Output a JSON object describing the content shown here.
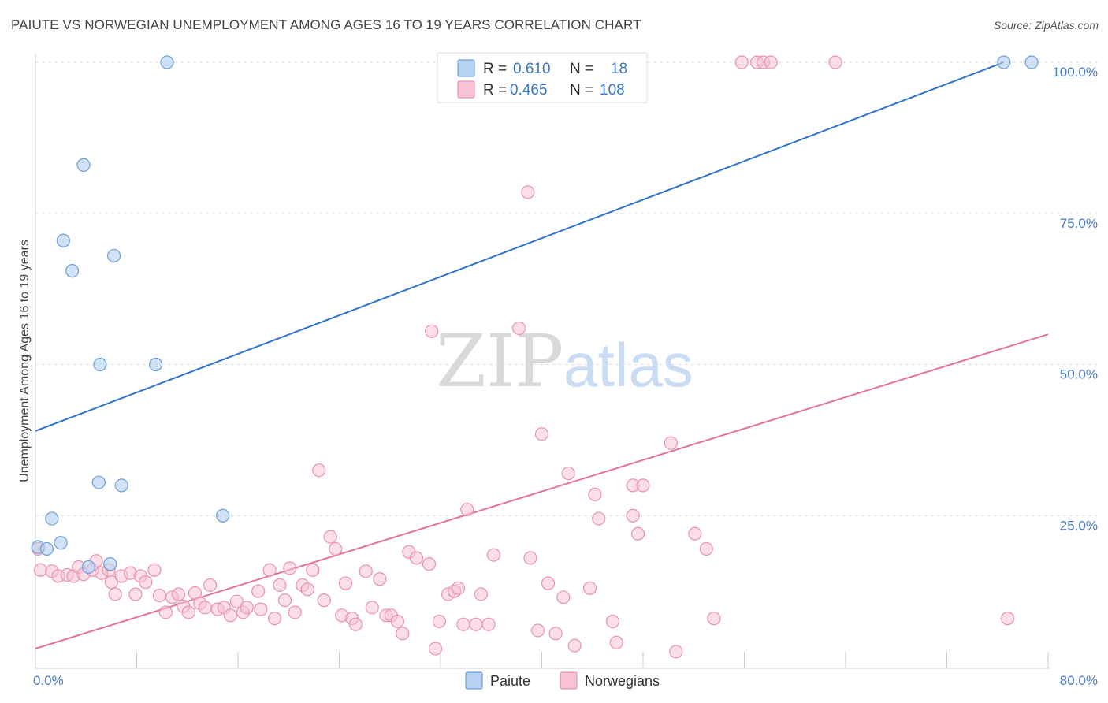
{
  "title": "PAIUTE VS NORWEGIAN UNEMPLOYMENT AMONG AGES 16 TO 19 YEARS CORRELATION CHART",
  "source": "Source: ZipAtlas.com",
  "watermark": {
    "zip": "ZIP",
    "atlas": "atlas"
  },
  "colors": {
    "paiute_fill": "#b8d2f3",
    "paiute_stroke": "#6d9fdc",
    "paiute_line": "#2f72cf",
    "norw_fill": "#f7c2d3",
    "norw_stroke": "#e892ad",
    "norw_line": "#e2739b",
    "grid": "#dddddd",
    "axis_text": "#4a7cc7"
  },
  "legend": {
    "paiute": {
      "r_label": "R =",
      "r_value": "0.610",
      "n_label": "N =",
      "n_value": "18"
    },
    "norwegians": {
      "r_label": "R =",
      "r_value": "0.465",
      "n_label": "N =",
      "n_value": "108"
    }
  },
  "chart_data": {
    "type": "scatter",
    "title": "PAIUTE VS NORWEGIAN UNEMPLOYMENT AMONG AGES 16 TO 19 YEARS CORRELATION CHART",
    "xlabel": "",
    "ylabel": "Unemployment Among Ages 16 to 19 years",
    "xlim": [
      0,
      80
    ],
    "ylim": [
      0,
      102
    ],
    "x_tick_labels": [
      "0.0%",
      "80.0%"
    ],
    "y_tick_labels": [
      {
        "value": 25,
        "label": "25.0%"
      },
      {
        "value": 50,
        "label": "50.0%"
      },
      {
        "value": 75,
        "label": "75.0%"
      },
      {
        "value": 100,
        "label": "100.0%"
      }
    ],
    "grid": true,
    "legend_position": "bottom",
    "series": [
      {
        "name": "Paiute",
        "trend": {
          "x": [
            0,
            76.5
          ],
          "y": [
            39,
            100
          ]
        },
        "points": [
          [
            10.4,
            100
          ],
          [
            76.5,
            100
          ],
          [
            78.7,
            100
          ],
          [
            3.8,
            83
          ],
          [
            2.2,
            70.5
          ],
          [
            2.9,
            65.5
          ],
          [
            6.2,
            68
          ],
          [
            5.1,
            50
          ],
          [
            9.5,
            50
          ],
          [
            5.0,
            30.5
          ],
          [
            6.8,
            30
          ],
          [
            14.8,
            25
          ],
          [
            1.3,
            24.5
          ],
          [
            2.0,
            20.5
          ],
          [
            0.2,
            19.8
          ],
          [
            0.9,
            19.5
          ],
          [
            4.2,
            16.5
          ],
          [
            5.9,
            17
          ]
        ]
      },
      {
        "name": "Norwegians",
        "trend": {
          "x": [
            0,
            80
          ],
          "y": [
            3,
            55
          ]
        },
        "points": [
          [
            0.2,
            19.5
          ],
          [
            0.4,
            16
          ],
          [
            1.3,
            15.8
          ],
          [
            1.8,
            15
          ],
          [
            2.5,
            15.2
          ],
          [
            3.0,
            15
          ],
          [
            3.4,
            16.5
          ],
          [
            3.8,
            15.3
          ],
          [
            4.5,
            16
          ],
          [
            4.8,
            17.5
          ],
          [
            5.2,
            15.5
          ],
          [
            5.8,
            16
          ],
          [
            6.0,
            14
          ],
          [
            6.3,
            12
          ],
          [
            6.8,
            15
          ],
          [
            7.5,
            15.5
          ],
          [
            7.9,
            12
          ],
          [
            8.3,
            15
          ],
          [
            8.7,
            14
          ],
          [
            9.4,
            16
          ],
          [
            9.8,
            11.8
          ],
          [
            10.3,
            9
          ],
          [
            10.8,
            11.5
          ],
          [
            11.3,
            12
          ],
          [
            11.7,
            10
          ],
          [
            12.1,
            9
          ],
          [
            12.6,
            12.2
          ],
          [
            13.0,
            10.5
          ],
          [
            13.4,
            9.8
          ],
          [
            13.8,
            13.5
          ],
          [
            14.4,
            9.5
          ],
          [
            14.9,
            9.8
          ],
          [
            15.4,
            8.5
          ],
          [
            15.9,
            10.8
          ],
          [
            16.4,
            9
          ],
          [
            16.7,
            9.8
          ],
          [
            17.6,
            12.5
          ],
          [
            17.8,
            9.5
          ],
          [
            18.5,
            16
          ],
          [
            18.9,
            8
          ],
          [
            19.3,
            13.5
          ],
          [
            19.7,
            11
          ],
          [
            20.1,
            16.3
          ],
          [
            20.5,
            9
          ],
          [
            21.1,
            13.5
          ],
          [
            21.5,
            12.8
          ],
          [
            21.9,
            16
          ],
          [
            22.4,
            32.5
          ],
          [
            22.8,
            11
          ],
          [
            23.3,
            21.5
          ],
          [
            23.7,
            19.5
          ],
          [
            24.2,
            8.5
          ],
          [
            24.5,
            13.8
          ],
          [
            25.0,
            8
          ],
          [
            25.3,
            7
          ],
          [
            26.1,
            15.8
          ],
          [
            26.6,
            9.8
          ],
          [
            27.2,
            14.5
          ],
          [
            27.7,
            8.5
          ],
          [
            28.1,
            8.5
          ],
          [
            28.6,
            7.5
          ],
          [
            29.0,
            5.5
          ],
          [
            29.5,
            19
          ],
          [
            30.1,
            18
          ],
          [
            31.1,
            17
          ],
          [
            31.3,
            55.5
          ],
          [
            31.6,
            3
          ],
          [
            31.9,
            7.5
          ],
          [
            32.6,
            12
          ],
          [
            33.1,
            12.5
          ],
          [
            33.4,
            13
          ],
          [
            34.1,
            26
          ],
          [
            33.8,
            7
          ],
          [
            34.8,
            7
          ],
          [
            35.2,
            12
          ],
          [
            35.8,
            7
          ],
          [
            36.2,
            18.5
          ],
          [
            38.2,
            56
          ],
          [
            38.9,
            78.5
          ],
          [
            39.1,
            18
          ],
          [
            39.7,
            6
          ],
          [
            40.0,
            38.5
          ],
          [
            40.5,
            13.8
          ],
          [
            41.1,
            5.5
          ],
          [
            41.7,
            11.5
          ],
          [
            42.1,
            32
          ],
          [
            42.6,
            3.5
          ],
          [
            43.8,
            13
          ],
          [
            44.2,
            28.5
          ],
          [
            44.5,
            24.5
          ],
          [
            45.6,
            7.5
          ],
          [
            45.9,
            4
          ],
          [
            47.2,
            25
          ],
          [
            47.2,
            30
          ],
          [
            48.0,
            30
          ],
          [
            47.6,
            22
          ],
          [
            50.2,
            37
          ],
          [
            50.6,
            2.5
          ],
          [
            52.1,
            22
          ],
          [
            53.0,
            19.5
          ],
          [
            53.6,
            8
          ],
          [
            76.8,
            8
          ],
          [
            44.5,
            100
          ],
          [
            55.8,
            100
          ],
          [
            57.0,
            100
          ],
          [
            57.5,
            100
          ],
          [
            58.1,
            100
          ],
          [
            63.2,
            100
          ]
        ]
      }
    ]
  },
  "bottom_legend": {
    "paiute": "Paiute",
    "norwegians": "Norwegians"
  }
}
